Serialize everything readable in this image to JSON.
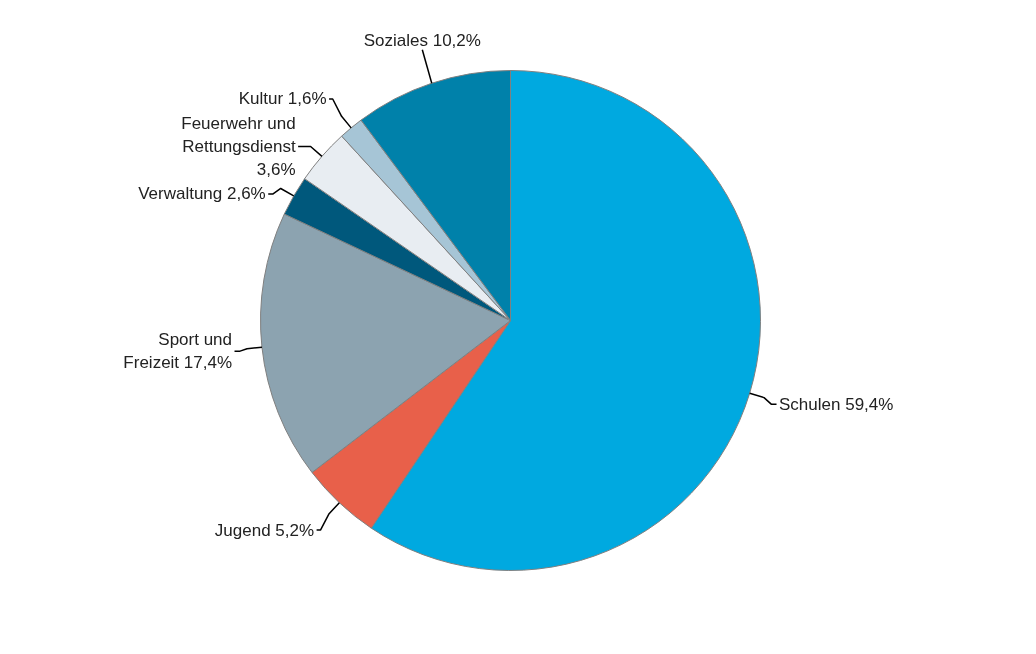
{
  "chart_data": {
    "type": "pie",
    "categories": [
      "Schulen",
      "Jugend",
      "Sport und Freizeit",
      "Verwaltung",
      "Feuerwehr und Rettungsdienst",
      "Kultur",
      "Soziales"
    ],
    "values": [
      59.4,
      5.2,
      17.4,
      2.6,
      3.6,
      1.6,
      10.2
    ],
    "value_labels": [
      "59,4%",
      "5,2%",
      "17,4%",
      "2,6%",
      "3,6%",
      "1,6%",
      "10,2%"
    ],
    "colors": [
      "#00a9e0",
      "#e8604a",
      "#8ca3b0",
      "#00587c",
      "#e8edf2",
      "#a6c5d6",
      "#0081aa"
    ]
  }
}
